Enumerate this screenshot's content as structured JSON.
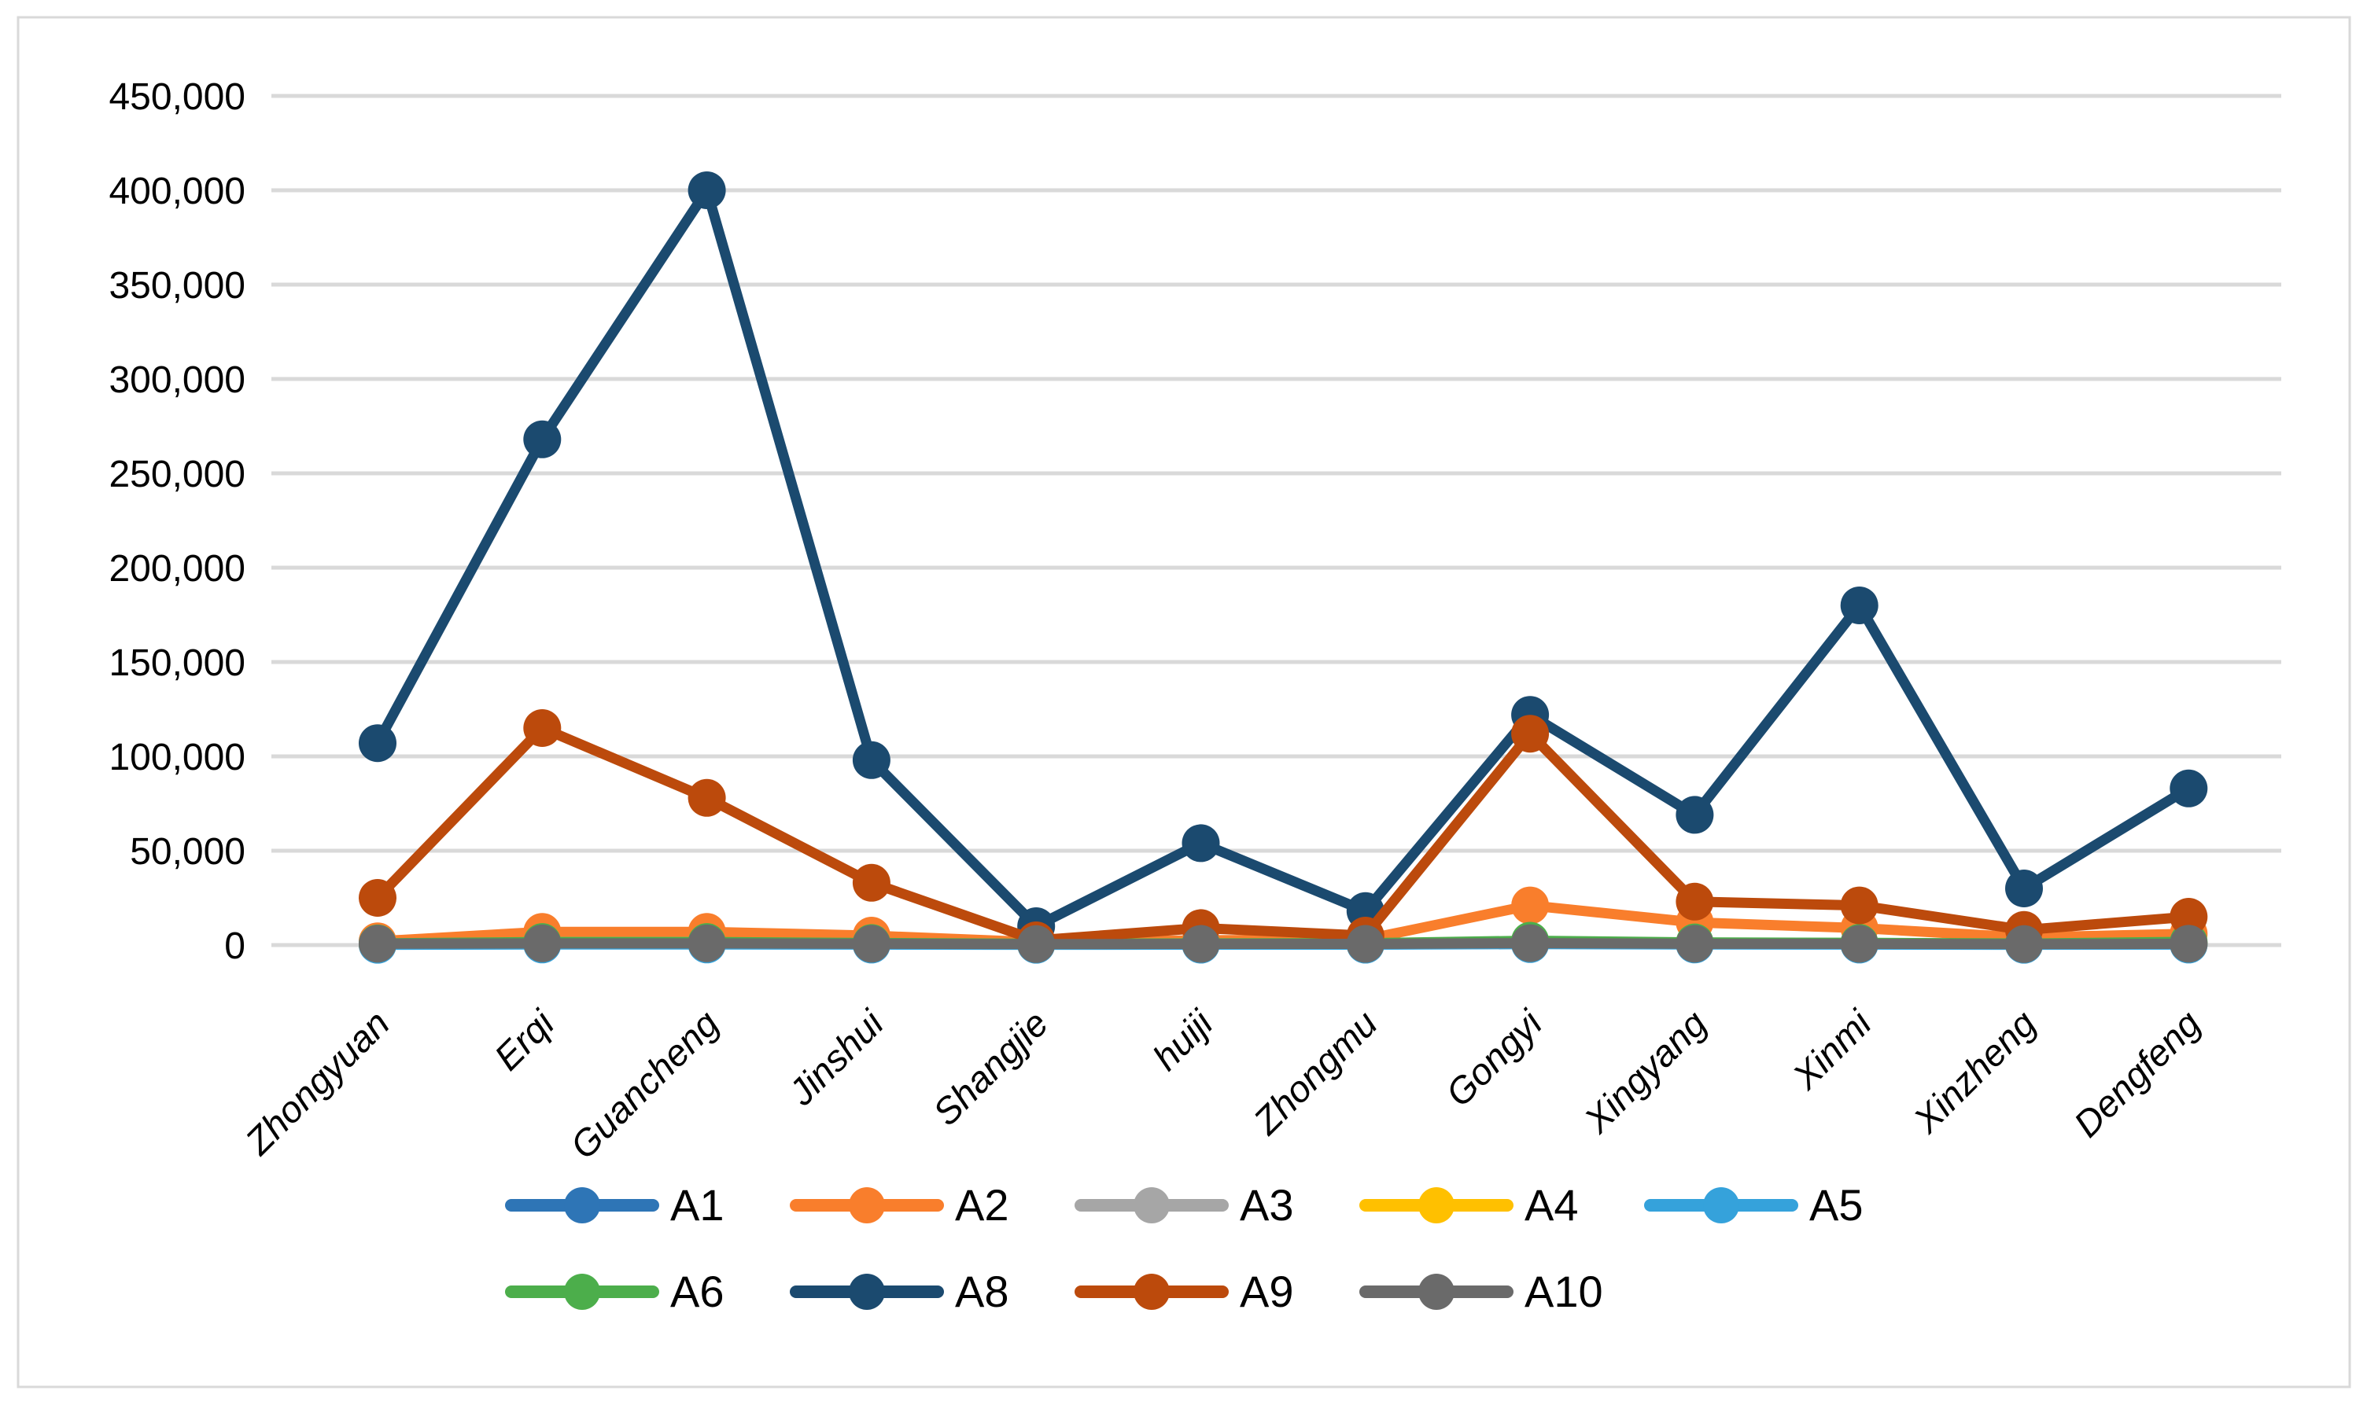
{
  "chart_data": {
    "type": "line",
    "title": "",
    "xlabel": "",
    "ylabel": "",
    "ylim": [
      0,
      450000
    ],
    "y_tick_step": 50000,
    "y_tick_labels": [
      "0",
      "50,000",
      "100,000",
      "150,000",
      "200,000",
      "250,000",
      "300,000",
      "350,000",
      "400,000",
      "450,000"
    ],
    "grid": "horizontal",
    "legend_position": "bottom",
    "categories": [
      "Zhongyuan",
      "Erqi",
      "Guancheng",
      "Jinshui",
      "Shangjie",
      "huiji",
      "Zhongmu",
      "Gongyi",
      "Xingyang",
      "Xinmi",
      "Xinzheng",
      "Dengfeng"
    ],
    "series": [
      {
        "name": "A1",
        "color": "#2E75B6",
        "values": [
          300,
          500,
          500,
          400,
          250,
          300,
          300,
          700,
          450,
          400,
          250,
          400
        ]
      },
      {
        "name": "A2",
        "color": "#F97E2C",
        "values": [
          2000,
          7000,
          7000,
          5000,
          1500,
          2500,
          3000,
          21000,
          12000,
          9000,
          4000,
          6000
        ]
      },
      {
        "name": "A3",
        "color": "#A6A6A6",
        "values": [
          350,
          550,
          550,
          450,
          280,
          330,
          330,
          750,
          480,
          430,
          280,
          430
        ]
      },
      {
        "name": "A4",
        "color": "#FFC000",
        "values": [
          400,
          600,
          600,
          500,
          300,
          350,
          350,
          800,
          500,
          450,
          300,
          450
        ]
      },
      {
        "name": "A5",
        "color": "#35A2DB",
        "values": [
          150,
          300,
          300,
          250,
          150,
          200,
          200,
          500,
          300,
          250,
          150,
          250
        ]
      },
      {
        "name": "A6",
        "color": "#4CAE4B",
        "values": [
          900,
          1600,
          1600,
          1100,
          700,
          900,
          1000,
          2300,
          1400,
          1200,
          800,
          1700
        ]
      },
      {
        "name": "A8",
        "color": "#1B4A6F",
        "values": [
          107000,
          268000,
          400000,
          98000,
          10000,
          54000,
          18000,
          122000,
          69000,
          180000,
          30000,
          83000
        ]
      },
      {
        "name": "A9",
        "color": "#BC4A0C",
        "values": [
          25000,
          115000,
          78000,
          33000,
          2500,
          9000,
          5000,
          112000,
          23000,
          21000,
          8000,
          15000
        ]
      },
      {
        "name": "A10",
        "color": "#6A6A6A",
        "values": [
          700,
          900,
          900,
          700,
          500,
          600,
          600,
          1000,
          700,
          650,
          500,
          700
        ]
      }
    ],
    "legend_rows": [
      [
        "A1",
        "A2",
        "A3",
        "A4",
        "A5"
      ],
      [
        "A6",
        "A8",
        "A9",
        "A10"
      ]
    ]
  },
  "frame": {
    "border_color": "#D9D9D9",
    "gridline_color": "#D9D9D9",
    "background": "#FFFFFF",
    "text_color": "#000000"
  }
}
